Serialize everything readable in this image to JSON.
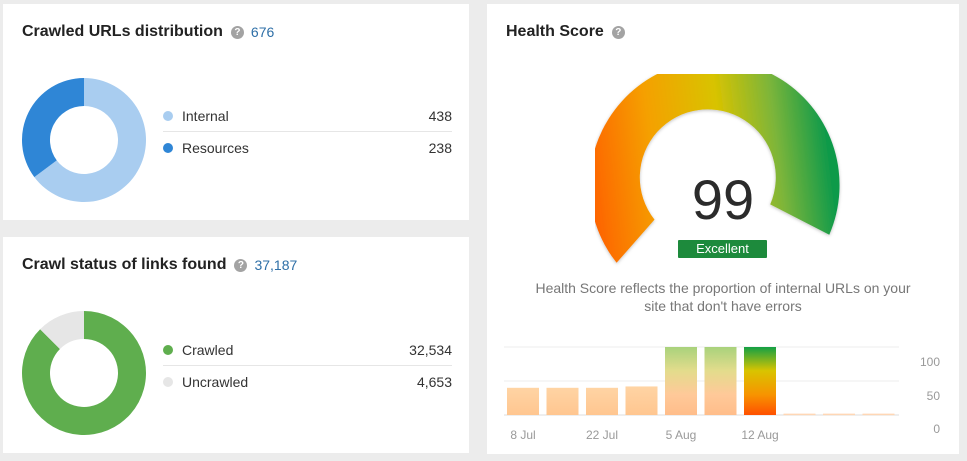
{
  "crawled_urls": {
    "title": "Crawled URLs distribution",
    "help": "?",
    "total": "676",
    "items": [
      {
        "label": "Internal",
        "value": "438",
        "count": 438,
        "color": "#a9cdf0"
      },
      {
        "label": "Resources",
        "value": "238",
        "count": 238,
        "color": "#2f86d6"
      }
    ]
  },
  "crawl_status": {
    "title": "Crawl status of links found",
    "help": "?",
    "total": "37,187",
    "items": [
      {
        "label": "Crawled",
        "value": "32,534",
        "count": 32534,
        "color": "#5fae4e"
      },
      {
        "label": "Uncrawled",
        "value": "4,653",
        "count": 4653,
        "color": "#e6e6e6"
      }
    ]
  },
  "health": {
    "title": "Health Score",
    "help": "?",
    "score": "99",
    "score_value": 99,
    "rating": "Excellent",
    "description_line1": "Health Score reflects the proportion of internal URLs on your",
    "description_line2": "site that don't have errors",
    "chart_data": {
      "type": "bar",
      "x_tick_labels": [
        "8 Jul",
        "22 Jul",
        "5 Aug",
        "12 Aug"
      ],
      "y_tick_labels": [
        "100",
        "50",
        "0"
      ],
      "ylim": [
        0,
        100
      ],
      "values": [
        40,
        40,
        40,
        42,
        100,
        100,
        100,
        2,
        2,
        2
      ],
      "highlight_index": 6
    }
  }
}
